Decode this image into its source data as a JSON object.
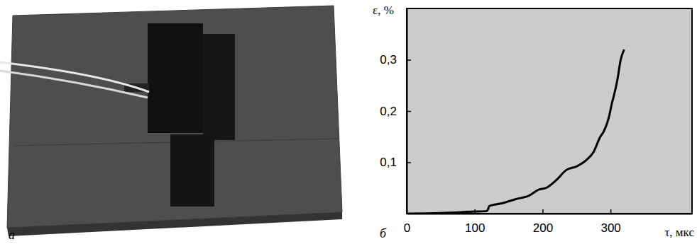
{
  "photo": {
    "panel_label": "а"
  },
  "chart_data": {
    "type": "line",
    "panel_label": "б",
    "x_label": "τ, мкс",
    "y_label": "ε, %",
    "x": [
      0,
      50,
      100,
      118,
      122,
      140,
      160,
      180,
      195,
      205,
      220,
      235,
      250,
      265,
      275,
      285,
      290,
      298,
      302,
      305,
      310,
      315,
      320
    ],
    "y": [
      0,
      0.001,
      0.004,
      0.005,
      0.015,
      0.02,
      0.028,
      0.035,
      0.047,
      0.05,
      0.065,
      0.085,
      0.092,
      0.105,
      0.12,
      0.15,
      0.16,
      0.19,
      0.215,
      0.23,
      0.26,
      0.3,
      0.32
    ],
    "color": "#000000",
    "xlim": [
      0,
      420
    ],
    "xticks": [
      0,
      100,
      200,
      300
    ],
    "ylim": [
      0,
      0.4
    ],
    "yticks": [
      {
        "value": 0.1,
        "label": "0,1"
      },
      {
        "value": 0.2,
        "label": "0,2"
      },
      {
        "value": 0.3,
        "label": "0,3"
      }
    ],
    "grid": false
  }
}
